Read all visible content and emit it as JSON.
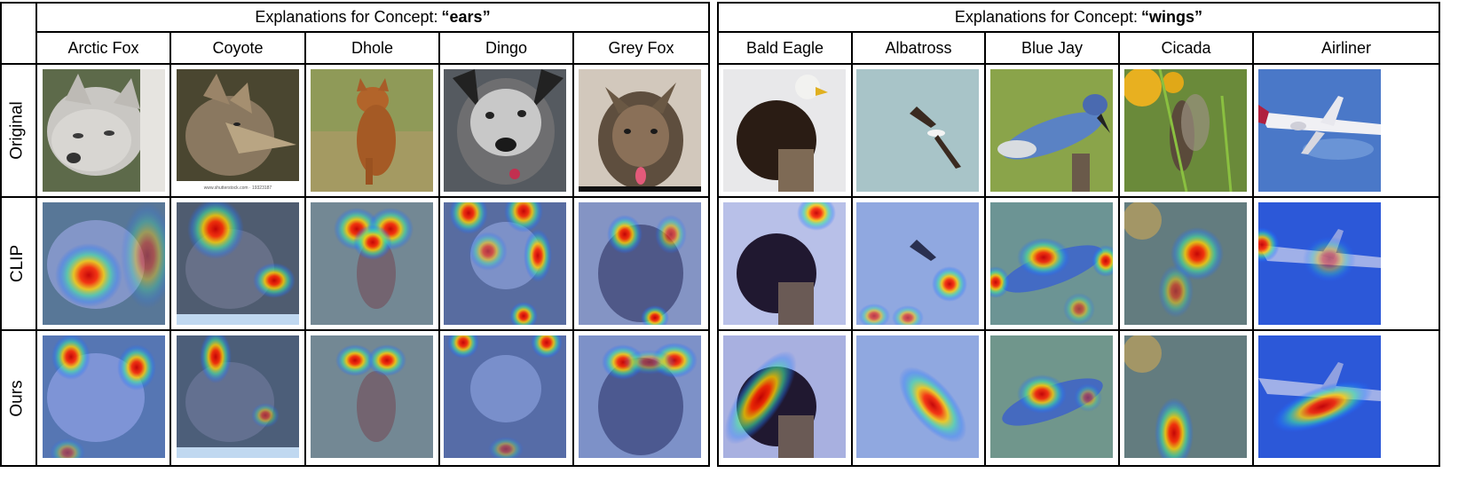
{
  "left_title_prefix": "Explanations for Concept:",
  "left_title_concept": "“ears”",
  "right_title_prefix": "Explanations for Concept:",
  "right_title_concept": "“wings”",
  "left_columns": [
    "Arctic Fox",
    "Coyote",
    "Dhole",
    "Dingo",
    "Grey Fox"
  ],
  "right_columns": [
    "Bald Eagle",
    "Albatross",
    "Blue Jay",
    "Cicada",
    "Airliner"
  ],
  "row_labels": [
    "Original",
    "CLIP",
    "Ours"
  ],
  "watermarks": {
    "coyote": "www.shutterstock.com · 19323187"
  }
}
